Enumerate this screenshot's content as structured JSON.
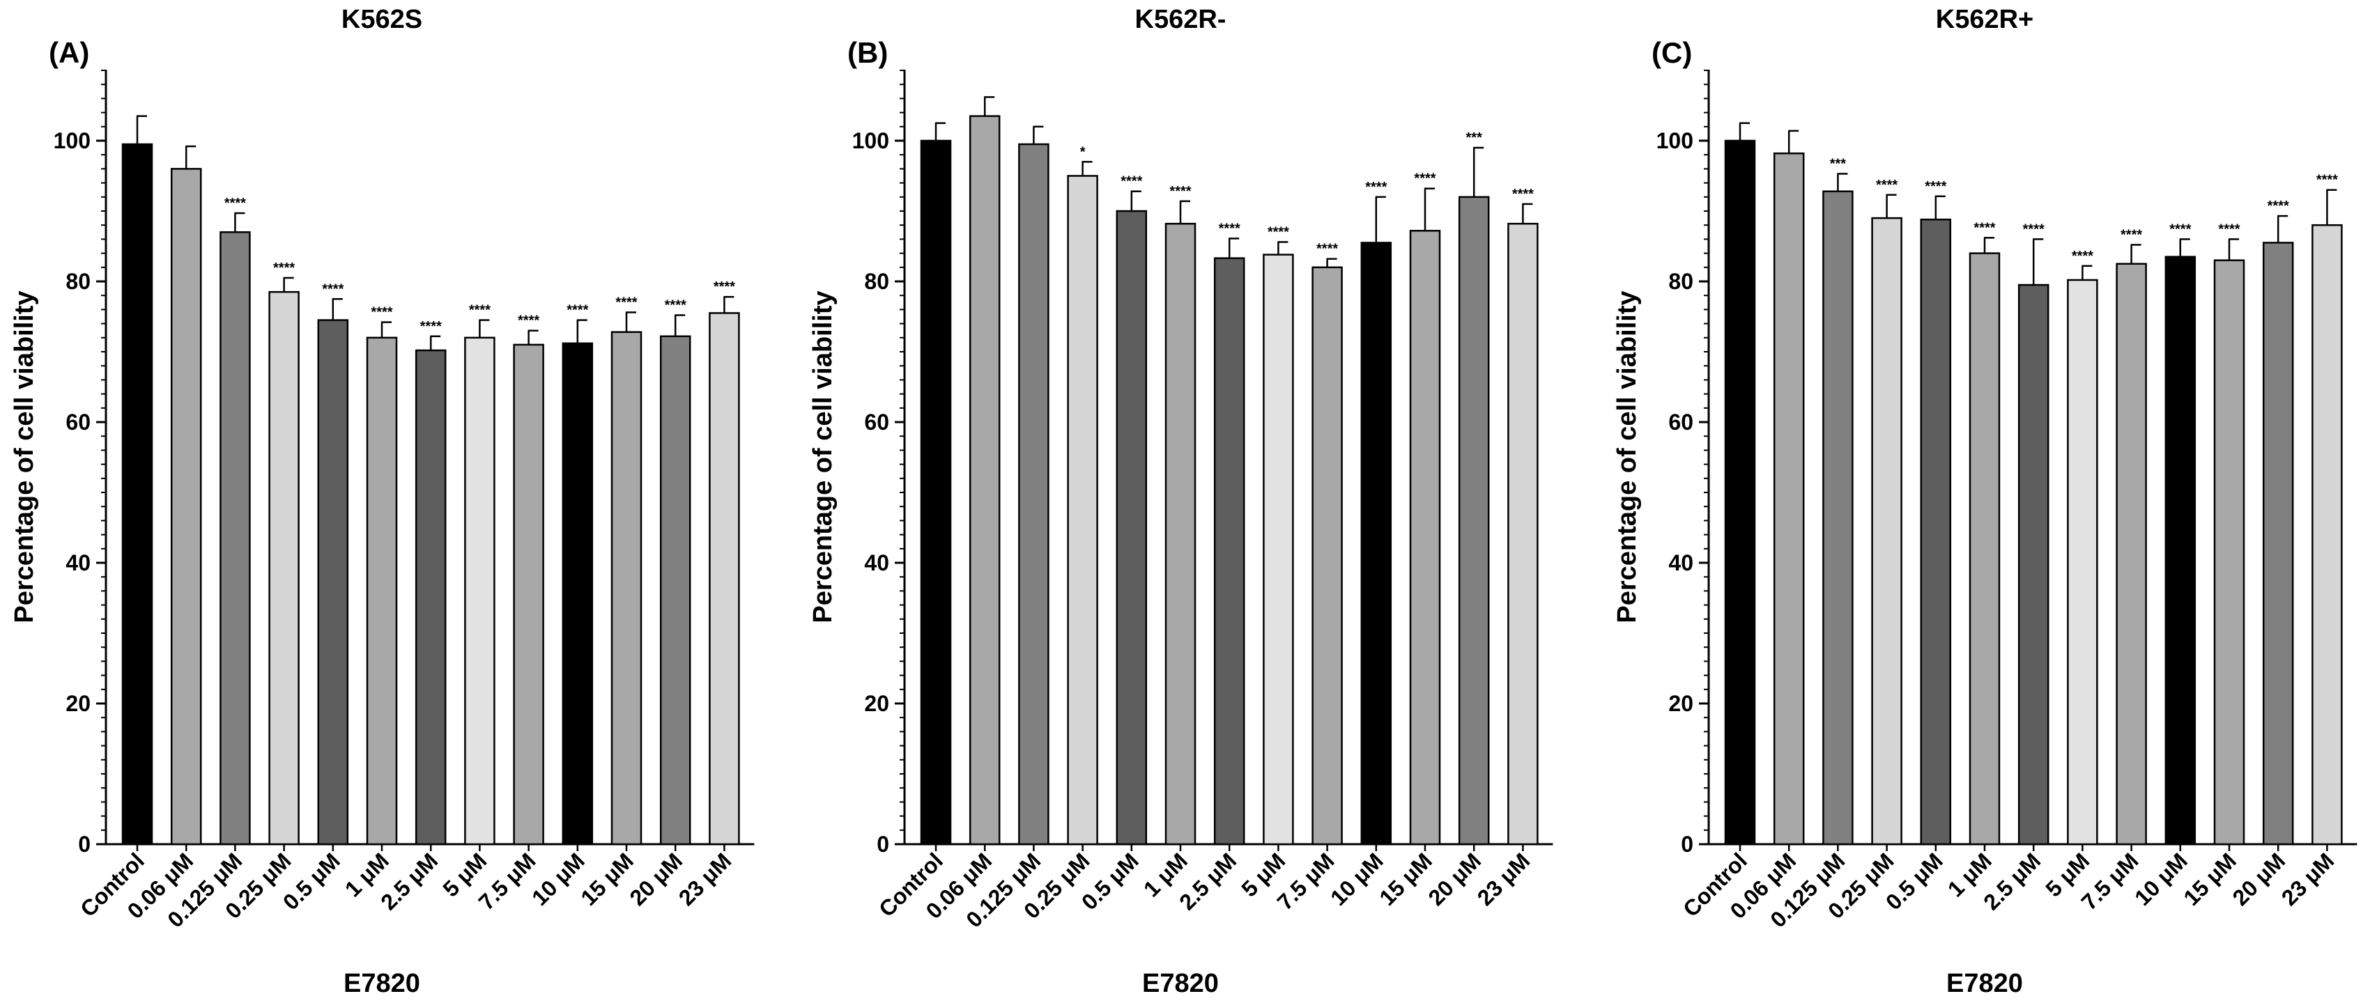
{
  "chart_data": [
    {
      "type": "bar",
      "panel_label": "(A)",
      "title": "K562S",
      "xlabel": "E7820",
      "ylabel": "Percentage of cell viability",
      "ylim": [
        0,
        110
      ],
      "yticks": [
        "0",
        "20",
        "40",
        "60",
        "80",
        "100"
      ],
      "categories": [
        "Control",
        "0.06 μM",
        "0.125 μM",
        "0.25 μM",
        "0.5 μM",
        "1 μM",
        "2.5 μM",
        "5 μM",
        "7.5 μM",
        "10 μM",
        "15 μM",
        "20 μM",
        "23 μM"
      ],
      "values": [
        99.5,
        96.0,
        87.0,
        78.5,
        74.5,
        72.0,
        70.2,
        72.0,
        71.0,
        71.2,
        72.8,
        72.2,
        75.5
      ],
      "errors": [
        4.0,
        3.2,
        2.7,
        2.0,
        3.0,
        2.2,
        2.0,
        2.5,
        2.0,
        3.3,
        2.8,
        3.0,
        2.3
      ],
      "significance": [
        "",
        "",
        "****",
        "****",
        "****",
        "****",
        "****",
        "****",
        "****",
        "****",
        "****",
        "****",
        "****"
      ],
      "colors": [
        "#000000",
        "#a8a8a8",
        "#808080",
        "#d6d6d6",
        "#5e5e5e",
        "#a8a8a8",
        "#5e5e5e",
        "#e2e2e2",
        "#a8a8a8",
        "#000000",
        "#a8a8a8",
        "#808080",
        "#d6d6d6"
      ]
    },
    {
      "type": "bar",
      "panel_label": "(B)",
      "title": "K562R-",
      "xlabel": "E7820",
      "ylabel": "Percentage of cell viability",
      "ylim": [
        0,
        110
      ],
      "yticks": [
        "0",
        "20",
        "40",
        "60",
        "80",
        "100"
      ],
      "categories": [
        "Control",
        "0.06 μM",
        "0.125 μM",
        "0.25 μM",
        "0.5 μM",
        "1 μM",
        "2.5 μM",
        "5 μM",
        "7.5 μM",
        "10 μM",
        "15 μM",
        "20 μM",
        "23 μM"
      ],
      "values": [
        100.0,
        103.5,
        99.5,
        95.0,
        90.0,
        88.2,
        83.3,
        83.8,
        82.0,
        85.5,
        87.2,
        92.0,
        88.2
      ],
      "errors": [
        2.5,
        2.7,
        2.5,
        2.0,
        2.8,
        3.2,
        2.8,
        1.8,
        1.2,
        6.5,
        6.0,
        7.0,
        2.8
      ],
      "significance": [
        "",
        "",
        "",
        "*",
        "****",
        "****",
        "****",
        "****",
        "****",
        "****",
        "****",
        "***",
        "****"
      ],
      "colors": [
        "#000000",
        "#a8a8a8",
        "#808080",
        "#d6d6d6",
        "#5e5e5e",
        "#a8a8a8",
        "#5e5e5e",
        "#e2e2e2",
        "#a8a8a8",
        "#000000",
        "#a8a8a8",
        "#808080",
        "#d6d6d6"
      ]
    },
    {
      "type": "bar",
      "panel_label": "(C)",
      "title": "K562R+",
      "xlabel": "E7820",
      "ylabel": "Percentage of cell viability",
      "ylim": [
        0,
        110
      ],
      "yticks": [
        "0",
        "20",
        "40",
        "60",
        "80",
        "100"
      ],
      "categories": [
        "Control",
        "0.06 μM",
        "0.125 μM",
        "0.25 μM",
        "0.5 μM",
        "1 μM",
        "2.5 μM",
        "5 μM",
        "7.5 μM",
        "10 μM",
        "15 μM",
        "20 μM",
        "23 μM"
      ],
      "values": [
        100.0,
        98.2,
        92.8,
        89.0,
        88.8,
        84.0,
        79.5,
        80.2,
        82.5,
        83.5,
        83.0,
        85.5,
        88.0
      ],
      "errors": [
        2.5,
        3.2,
        2.5,
        3.3,
        3.3,
        2.2,
        6.5,
        2.0,
        2.7,
        2.5,
        3.0,
        3.8,
        5.0
      ],
      "significance": [
        "",
        "",
        "***",
        "****",
        "****",
        "****",
        "****",
        "****",
        "****",
        "****",
        "****",
        "****",
        "****"
      ],
      "colors": [
        "#000000",
        "#a8a8a8",
        "#808080",
        "#d6d6d6",
        "#5e5e5e",
        "#a8a8a8",
        "#5e5e5e",
        "#e2e2e2",
        "#a8a8a8",
        "#000000",
        "#a8a8a8",
        "#808080",
        "#d6d6d6"
      ]
    }
  ]
}
